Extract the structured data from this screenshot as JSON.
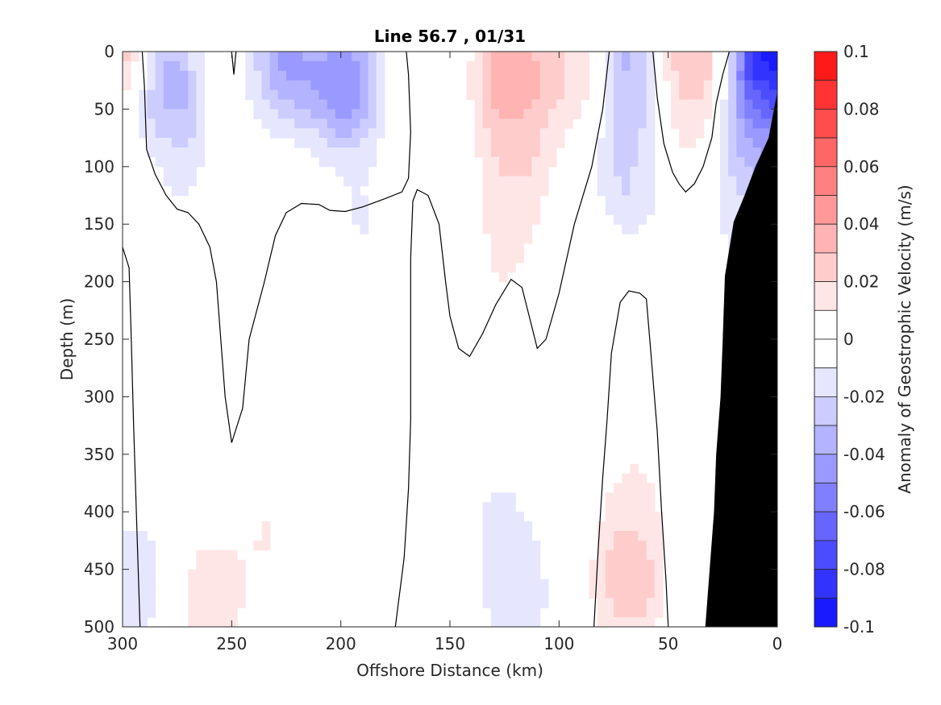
{
  "chart_data": {
    "type": "heatmap",
    "title": "Line 56.7 , 01/31",
    "xlabel": "Offshore Distance (km)",
    "ylabel": "Depth (m)",
    "colorbar_label": "Anomaly of Geostrophic Velocity (m/s)",
    "xlim": [
      300,
      0
    ],
    "ylim": [
      0,
      500
    ],
    "x_reversed": true,
    "y_reversed": true,
    "x_ticks": [
      300,
      250,
      200,
      150,
      100,
      50,
      0
    ],
    "y_ticks": [
      0,
      50,
      100,
      150,
      200,
      250,
      300,
      350,
      400,
      450,
      500
    ],
    "colorbar": {
      "min": -0.1,
      "max": 0.1,
      "step": 0.01,
      "ticks": [
        0.1,
        0.08,
        0.06,
        0.04,
        0.02,
        0,
        -0.02,
        -0.04,
        -0.06,
        -0.08,
        -0.1
      ],
      "tick_labels": [
        "0.1",
        "0.08",
        "0.06",
        "0.04",
        "0.02",
        "0",
        "-0.02",
        "-0.04",
        "-0.06",
        "-0.08",
        "-0.1"
      ],
      "positive_color": "#ff0000",
      "negative_color": "#0000ff",
      "zero_color": "#ffffff"
    },
    "bathymetry_color": "#000000",
    "bathymetry": [
      {
        "x": 33,
        "depth": 500
      },
      {
        "x": 31,
        "depth": 450
      },
      {
        "x": 29,
        "depth": 400
      },
      {
        "x": 28,
        "depth": 350
      },
      {
        "x": 26,
        "depth": 300
      },
      {
        "x": 25,
        "depth": 250
      },
      {
        "x": 24,
        "depth": 195
      },
      {
        "x": 20,
        "depth": 148
      },
      {
        "x": 15,
        "depth": 125
      },
      {
        "x": 10,
        "depth": 100
      },
      {
        "x": 4,
        "depth": 75
      },
      {
        "x": 0,
        "depth": 35
      }
    ],
    "anomaly_features": [
      {
        "x": 300,
        "depth": 0,
        "value": 0.04
      },
      {
        "x": 298,
        "depth": 100,
        "value": 0.01
      },
      {
        "x": 282,
        "depth": 35,
        "value": -0.05
      },
      {
        "x": 275,
        "depth": 100,
        "value": -0.01
      },
      {
        "x": 225,
        "depth": 10,
        "value": -0.04
      },
      {
        "x": 198,
        "depth": 30,
        "value": -0.05
      },
      {
        "x": 190,
        "depth": 150,
        "value": -0.01
      },
      {
        "x": 122,
        "depth": 20,
        "value": 0.04
      },
      {
        "x": 120,
        "depth": 100,
        "value": 0.02
      },
      {
        "x": 125,
        "depth": 180,
        "value": 0.01
      },
      {
        "x": 94,
        "depth": 20,
        "value": 0.02
      },
      {
        "x": 66,
        "depth": 20,
        "value": -0.04
      },
      {
        "x": 68,
        "depth": 110,
        "value": -0.02
      },
      {
        "x": 42,
        "depth": 10,
        "value": 0.04
      },
      {
        "x": 40,
        "depth": 70,
        "value": 0.01
      },
      {
        "x": 3,
        "depth": 5,
        "value": -0.1
      },
      {
        "x": 10,
        "depth": 80,
        "value": -0.04
      },
      {
        "x": 18,
        "depth": 150,
        "value": -0.01
      },
      {
        "x": 295,
        "depth": 460,
        "value": -0.02
      },
      {
        "x": 278,
        "depth": 320,
        "value": 0.01
      },
      {
        "x": 260,
        "depth": 480,
        "value": 0.02
      },
      {
        "x": 233,
        "depth": 420,
        "value": 0.01
      },
      {
        "x": 190,
        "depth": 320,
        "value": 0.01
      },
      {
        "x": 128,
        "depth": 400,
        "value": -0.01
      },
      {
        "x": 120,
        "depth": 470,
        "value": -0.02
      },
      {
        "x": 68,
        "depth": 460,
        "value": 0.03
      },
      {
        "x": 66,
        "depth": 380,
        "value": 0.01
      },
      {
        "x": 42,
        "depth": 270,
        "value": -0.01
      }
    ],
    "zero_contours": [
      [
        [
          291,
          0
        ],
        [
          290,
          30
        ],
        [
          289,
          85
        ],
        [
          285,
          107
        ],
        [
          280,
          125
        ],
        [
          275,
          137
        ],
        [
          270,
          140
        ],
        [
          265,
          150
        ],
        [
          260,
          170
        ],
        [
          257,
          200
        ],
        [
          255,
          250
        ],
        [
          253,
          300
        ],
        [
          250,
          340
        ],
        [
          245,
          310
        ],
        [
          242,
          250
        ],
        [
          235,
          200
        ],
        [
          230,
          160
        ],
        [
          225,
          140
        ],
        [
          218,
          132
        ],
        [
          210,
          133
        ],
        [
          205,
          138
        ],
        [
          198,
          139
        ],
        [
          190,
          135
        ],
        [
          180,
          128
        ],
        [
          172,
          122
        ],
        [
          169,
          110
        ],
        [
          168,
          70
        ],
        [
          169,
          20
        ],
        [
          170,
          0
        ]
      ],
      [
        [
          300,
          170
        ],
        [
          297,
          188
        ],
        [
          296,
          250
        ],
        [
          295,
          320
        ],
        [
          294,
          380
        ],
        [
          293,
          440
        ],
        [
          292,
          500
        ]
      ],
      [
        [
          250,
          0
        ],
        [
          249,
          20
        ],
        [
          248,
          0
        ]
      ],
      [
        [
          175,
          500
        ],
        [
          171,
          440
        ],
        [
          169,
          380
        ],
        [
          168,
          320
        ],
        [
          168,
          250
        ],
        [
          168,
          180
        ],
        [
          167,
          130
        ],
        [
          165,
          120
        ],
        [
          160,
          125
        ],
        [
          155,
          150
        ],
        [
          152,
          200
        ],
        [
          150,
          230
        ],
        [
          146,
          258
        ],
        [
          141,
          265
        ],
        [
          135,
          245
        ],
        [
          129,
          220
        ],
        [
          122,
          198
        ],
        [
          117,
          205
        ],
        [
          113,
          235
        ],
        [
          110,
          258
        ],
        [
          106,
          250
        ],
        [
          100,
          210
        ],
        [
          93,
          150
        ],
        [
          85,
          100
        ],
        [
          80,
          50
        ],
        [
          77,
          0
        ]
      ],
      [
        [
          84,
          500
        ],
        [
          82,
          430
        ],
        [
          80,
          370
        ],
        [
          78,
          320
        ],
        [
          76,
          262
        ],
        [
          72,
          218
        ],
        [
          68,
          208
        ],
        [
          63,
          210
        ],
        [
          60,
          215
        ],
        [
          58,
          260
        ],
        [
          55,
          330
        ],
        [
          53,
          400
        ],
        [
          51,
          460
        ],
        [
          50,
          500
        ]
      ],
      [
        [
          57,
          0
        ],
        [
          55,
          40
        ],
        [
          52,
          80
        ],
        [
          48,
          105
        ],
        [
          45,
          115
        ],
        [
          42,
          122
        ],
        [
          38,
          115
        ],
        [
          34,
          100
        ],
        [
          30,
          75
        ],
        [
          28,
          45
        ],
        [
          25,
          20
        ],
        [
          22,
          0
        ]
      ]
    ]
  }
}
